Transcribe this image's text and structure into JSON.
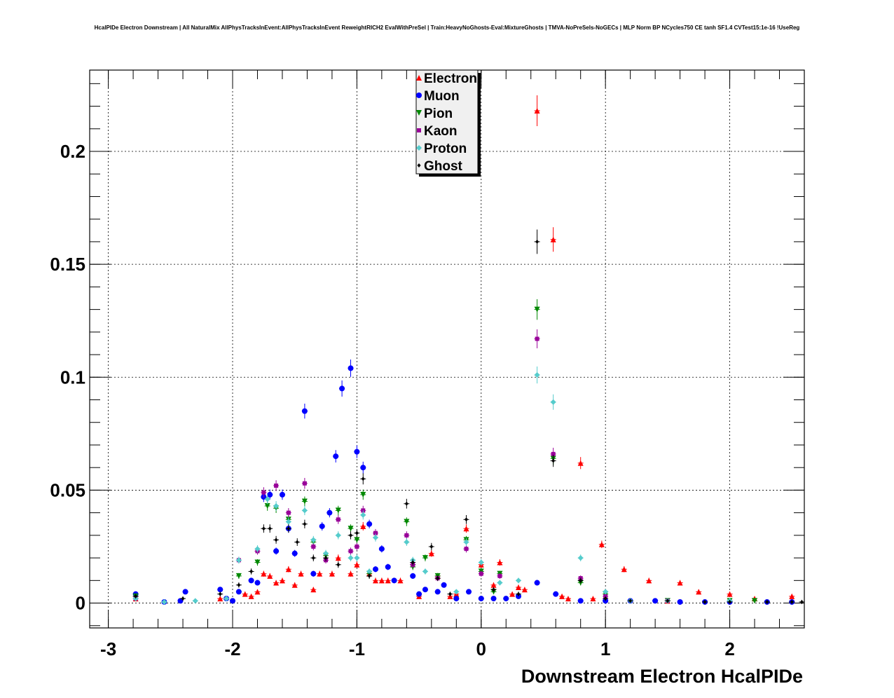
{
  "chart_data": {
    "type": "scatter",
    "title": "HcalPIDe Electron Downstream | All NaturalMix AllPhysTracksInEvent:AllPhysTracksInEvent ReweightRICH2 EvalWithPreSel | Train:HeavyNoGhosts-Eval:MixtureGhosts | TMVA-NoPreSels-NoGECs | MLP Norm BP NCycles750 CE tanh SF1.4 CVTest15:1e-16 !UseReg",
    "xlabel": "Downstream Electron HcalPIDe",
    "ylabel": "",
    "xlim": [
      -3.15,
      2.6
    ],
    "ylim": [
      -0.011,
      0.236
    ],
    "grid": true,
    "legend_position": "top-center",
    "x_ticks": [
      "-3",
      "-2",
      "-1",
      "0",
      "1",
      "2"
    ],
    "y_ticks": [
      "0",
      "0.05",
      "0.1",
      "0.15",
      "0.2"
    ],
    "series": [
      {
        "name": "Electron",
        "color": "#ff0000",
        "marker": "triangle-up",
        "points": [
          [
            -2.78,
            0.002
          ],
          [
            -2.1,
            0.002
          ],
          [
            -1.9,
            0.004
          ],
          [
            -1.85,
            0.003
          ],
          [
            -1.8,
            0.005
          ],
          [
            -1.75,
            0.013
          ],
          [
            -1.7,
            0.012
          ],
          [
            -1.65,
            0.009
          ],
          [
            -1.6,
            0.01
          ],
          [
            -1.55,
            0.015
          ],
          [
            -1.5,
            0.008
          ],
          [
            -1.45,
            0.013
          ],
          [
            -1.35,
            0.006
          ],
          [
            -1.3,
            0.013
          ],
          [
            -1.2,
            0.013
          ],
          [
            -1.15,
            0.02
          ],
          [
            -1.05,
            0.013
          ],
          [
            -1.0,
            0.017
          ],
          [
            -0.95,
            0.034
          ],
          [
            -0.9,
            0.013
          ],
          [
            -0.85,
            0.01
          ],
          [
            -0.8,
            0.01
          ],
          [
            -0.75,
            0.01
          ],
          [
            -0.65,
            0.01
          ],
          [
            -0.5,
            0.003
          ],
          [
            -0.4,
            0.022
          ],
          [
            -0.35,
            0.012
          ],
          [
            -0.25,
            0.003
          ],
          [
            -0.2,
            0.004
          ],
          [
            -0.12,
            0.033
          ],
          [
            0.0,
            0.017
          ],
          [
            0.1,
            0.008
          ],
          [
            0.15,
            0.018
          ],
          [
            0.25,
            0.004
          ],
          [
            0.3,
            0.007
          ],
          [
            0.35,
            0.006
          ],
          [
            0.45,
            0.218
          ],
          [
            0.58,
            0.161
          ],
          [
            0.65,
            0.003
          ],
          [
            0.7,
            0.002
          ],
          [
            0.8,
            0.062
          ],
          [
            0.9,
            0.002
          ],
          [
            0.97,
            0.026
          ],
          [
            1.15,
            0.015
          ],
          [
            1.35,
            0.01
          ],
          [
            1.5,
            0.001
          ],
          [
            1.6,
            0.009
          ],
          [
            1.75,
            0.005
          ],
          [
            2.0,
            0.004
          ],
          [
            2.2,
            0.002
          ],
          [
            2.5,
            0.003
          ]
        ]
      },
      {
        "name": "Muon",
        "color": "#0000ff",
        "marker": "circle",
        "points": [
          [
            -2.78,
            0.004
          ],
          [
            -2.55,
            0.0005
          ],
          [
            -2.42,
            0.001
          ],
          [
            -2.38,
            0.005
          ],
          [
            -2.1,
            0.006
          ],
          [
            -2.05,
            0.002
          ],
          [
            -2.0,
            0.001
          ],
          [
            -1.95,
            0.005
          ],
          [
            -1.85,
            0.01
          ],
          [
            -1.8,
            0.009
          ],
          [
            -1.75,
            0.047
          ],
          [
            -1.7,
            0.048
          ],
          [
            -1.65,
            0.023
          ],
          [
            -1.6,
            0.048
          ],
          [
            -1.55,
            0.033
          ],
          [
            -1.5,
            0.022
          ],
          [
            -1.42,
            0.085
          ],
          [
            -1.35,
            0.013
          ],
          [
            -1.28,
            0.034
          ],
          [
            -1.22,
            0.04
          ],
          [
            -1.17,
            0.065
          ],
          [
            -1.12,
            0.095
          ],
          [
            -1.05,
            0.104
          ],
          [
            -1.0,
            0.067
          ],
          [
            -0.95,
            0.06
          ],
          [
            -0.9,
            0.035
          ],
          [
            -0.85,
            0.015
          ],
          [
            -0.8,
            0.024
          ],
          [
            -0.75,
            0.016
          ],
          [
            -0.7,
            0.01
          ],
          [
            -0.55,
            0.012
          ],
          [
            -0.5,
            0.004
          ],
          [
            -0.45,
            0.006
          ],
          [
            -0.35,
            0.005
          ],
          [
            -0.3,
            0.008
          ],
          [
            -0.2,
            0.002
          ],
          [
            -0.1,
            0.005
          ],
          [
            0.0,
            0.002
          ],
          [
            0.1,
            0.002
          ],
          [
            0.2,
            0.002
          ],
          [
            0.3,
            0.003
          ],
          [
            0.45,
            0.009
          ],
          [
            0.6,
            0.004
          ],
          [
            0.8,
            0.001
          ],
          [
            1.0,
            0.001
          ],
          [
            1.2,
            0.001
          ],
          [
            1.4,
            0.001
          ],
          [
            1.6,
            0.0005
          ],
          [
            1.8,
            0.0005
          ],
          [
            2.0,
            0.0005
          ],
          [
            2.3,
            0.0005
          ],
          [
            2.5,
            0.0005
          ]
        ]
      },
      {
        "name": "Pion",
        "color": "#008800",
        "marker": "triangle-down",
        "points": [
          [
            -2.78,
            0.003
          ],
          [
            -1.95,
            0.012
          ],
          [
            -1.8,
            0.018
          ],
          [
            -1.72,
            0.043
          ],
          [
            -1.65,
            0.042
          ],
          [
            -1.55,
            0.037
          ],
          [
            -1.42,
            0.045
          ],
          [
            -1.35,
            0.027
          ],
          [
            -1.25,
            0.021
          ],
          [
            -1.15,
            0.041
          ],
          [
            -1.05,
            0.033
          ],
          [
            -1.0,
            0.028
          ],
          [
            -0.95,
            0.048
          ],
          [
            -0.9,
            0.013
          ],
          [
            -0.6,
            0.036
          ],
          [
            -0.55,
            0.016
          ],
          [
            -0.45,
            0.02
          ],
          [
            -0.35,
            0.012
          ],
          [
            -0.12,
            0.028
          ],
          [
            0.0,
            0.014
          ],
          [
            0.1,
            0.005
          ],
          [
            0.15,
            0.013
          ],
          [
            0.45,
            0.13
          ],
          [
            0.58,
            0.064
          ],
          [
            0.8,
            0.009
          ],
          [
            1.0,
            0.004
          ],
          [
            1.5,
            0.001
          ],
          [
            2.0,
            0.001
          ],
          [
            2.2,
            0.001
          ]
        ]
      },
      {
        "name": "Kaon",
        "color": "#990099",
        "marker": "square",
        "points": [
          [
            -2.78,
            0.002
          ],
          [
            -1.95,
            0.019
          ],
          [
            -1.8,
            0.023
          ],
          [
            -1.75,
            0.049
          ],
          [
            -1.65,
            0.052
          ],
          [
            -1.55,
            0.04
          ],
          [
            -1.42,
            0.053
          ],
          [
            -1.35,
            0.025
          ],
          [
            -1.25,
            0.019
          ],
          [
            -1.15,
            0.037
          ],
          [
            -1.05,
            0.023
          ],
          [
            -1.0,
            0.025
          ],
          [
            -0.95,
            0.041
          ],
          [
            -0.85,
            0.031
          ],
          [
            -0.6,
            0.03
          ],
          [
            -0.55,
            0.017
          ],
          [
            -0.35,
            0.011
          ],
          [
            -0.12,
            0.024
          ],
          [
            0.0,
            0.013
          ],
          [
            0.15,
            0.012
          ],
          [
            0.45,
            0.117
          ],
          [
            0.58,
            0.066
          ],
          [
            0.8,
            0.011
          ],
          [
            1.0,
            0.003
          ],
          [
            1.5,
            0.001
          ]
        ]
      },
      {
        "name": "Proton",
        "color": "#55cccc",
        "marker": "diamond",
        "points": [
          [
            -2.78,
            0.002
          ],
          [
            -2.55,
            0.0005
          ],
          [
            -2.3,
            0.001
          ],
          [
            -2.05,
            0.002
          ],
          [
            -1.95,
            0.019
          ],
          [
            -1.8,
            0.024
          ],
          [
            -1.72,
            0.046
          ],
          [
            -1.65,
            0.043
          ],
          [
            -1.55,
            0.036
          ],
          [
            -1.42,
            0.041
          ],
          [
            -1.35,
            0.028
          ],
          [
            -1.25,
            0.022
          ],
          [
            -1.15,
            0.03
          ],
          [
            -1.05,
            0.02
          ],
          [
            -1.0,
            0.02
          ],
          [
            -0.95,
            0.039
          ],
          [
            -0.9,
            0.014
          ],
          [
            -0.85,
            0.029
          ],
          [
            -0.6,
            0.027
          ],
          [
            -0.55,
            0.019
          ],
          [
            -0.45,
            0.014
          ],
          [
            -0.2,
            0.005
          ],
          [
            -0.12,
            0.027
          ],
          [
            0.0,
            0.018
          ],
          [
            0.15,
            0.009
          ],
          [
            0.3,
            0.01
          ],
          [
            0.45,
            0.101
          ],
          [
            0.58,
            0.089
          ],
          [
            0.8,
            0.02
          ],
          [
            1.0,
            0.005
          ],
          [
            1.2,
            0.001
          ],
          [
            1.5,
            0.001
          ],
          [
            2.0,
            0.001
          ]
        ]
      },
      {
        "name": "Ghost",
        "color": "#000000",
        "marker": "diamond-small",
        "points": [
          [
            -2.78,
            0.003
          ],
          [
            -2.4,
            0.002
          ],
          [
            -2.1,
            0.004
          ],
          [
            -1.95,
            0.008
          ],
          [
            -1.85,
            0.014
          ],
          [
            -1.75,
            0.033
          ],
          [
            -1.7,
            0.033
          ],
          [
            -1.65,
            0.028
          ],
          [
            -1.55,
            0.033
          ],
          [
            -1.48,
            0.027
          ],
          [
            -1.42,
            0.035
          ],
          [
            -1.35,
            0.02
          ],
          [
            -1.25,
            0.02
          ],
          [
            -1.15,
            0.017
          ],
          [
            -1.05,
            0.03
          ],
          [
            -1.0,
            0.031
          ],
          [
            -0.95,
            0.055
          ],
          [
            -0.9,
            0.012
          ],
          [
            -0.6,
            0.044
          ],
          [
            -0.55,
            0.018
          ],
          [
            -0.4,
            0.025
          ],
          [
            -0.35,
            0.011
          ],
          [
            -0.25,
            0.004
          ],
          [
            -0.12,
            0.037
          ],
          [
            0.1,
            0.006
          ],
          [
            0.3,
            0.004
          ],
          [
            0.45,
            0.16
          ],
          [
            0.58,
            0.063
          ],
          [
            0.8,
            0.01
          ],
          [
            1.0,
            0.002
          ],
          [
            1.2,
            0.001
          ],
          [
            1.5,
            0.001
          ],
          [
            1.8,
            0.0005
          ],
          [
            2.0,
            0.0005
          ],
          [
            2.3,
            0.0005
          ],
          [
            2.5,
            0.0005
          ],
          [
            2.58,
            0.0005
          ]
        ]
      }
    ]
  }
}
